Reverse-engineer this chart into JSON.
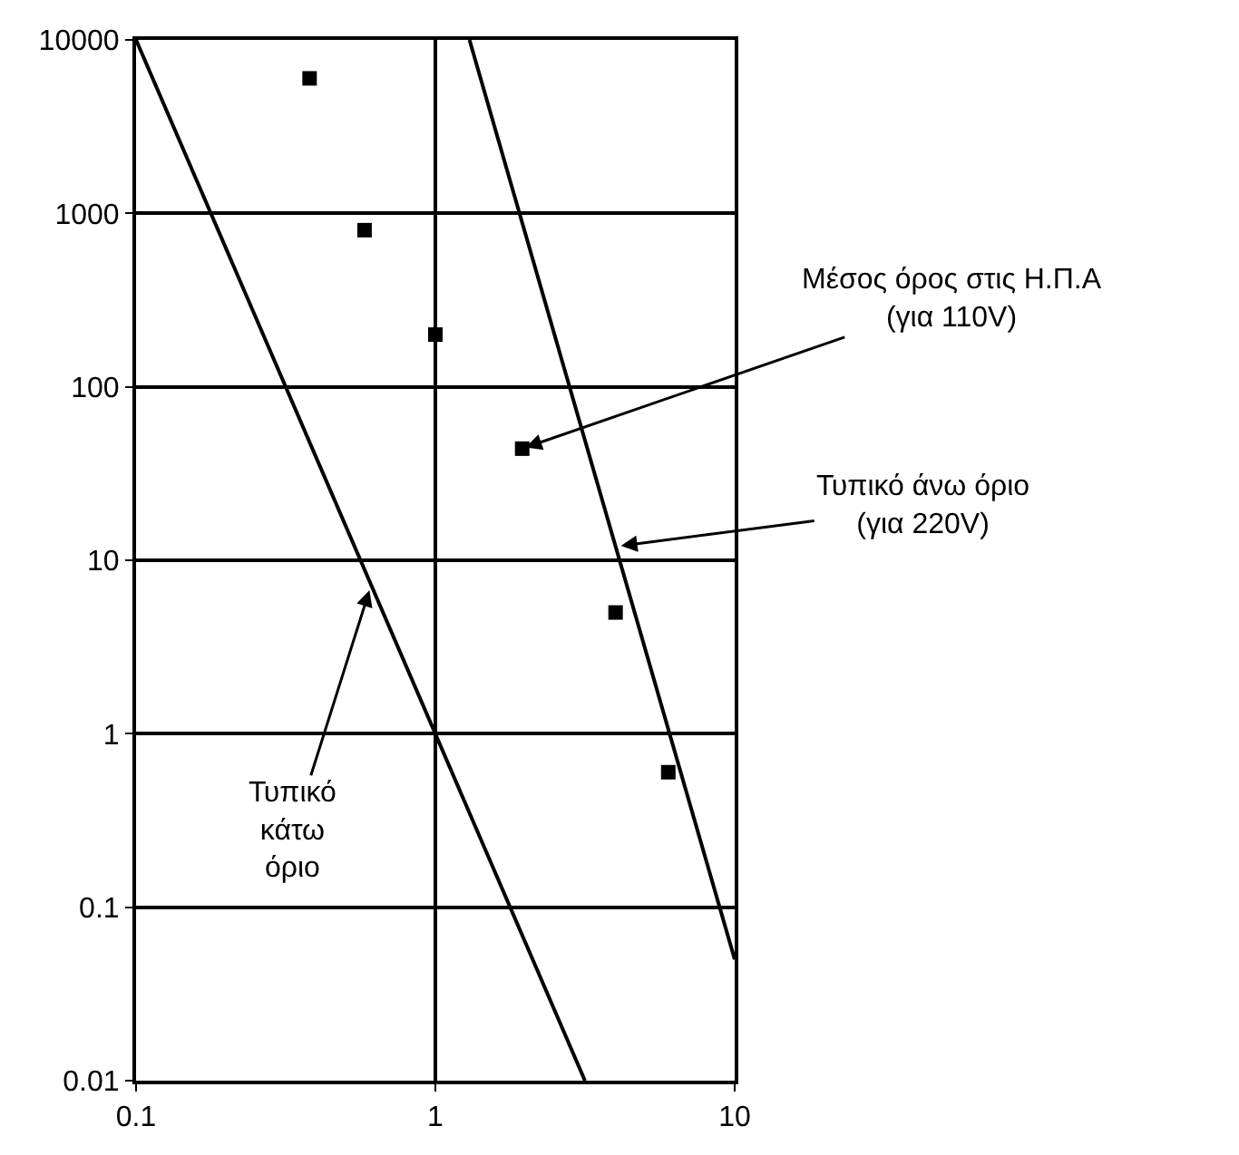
{
  "chart_data": {
    "type": "scatter",
    "log": "xy",
    "grid": true,
    "xlim": [
      0.1,
      10
    ],
    "xticks": [
      0.1,
      1,
      10
    ],
    "ylim": [
      0.01,
      10000
    ],
    "yticks": [
      0.01,
      0.1,
      1,
      10,
      100,
      1000,
      10000
    ],
    "x": [
      0.38,
      0.58,
      1.0,
      1.95,
      4.0,
      6.0
    ],
    "series": [
      {
        "marker": "square",
        "color": "#000000",
        "values": [
          6000,
          800,
          200,
          44,
          5,
          0.6
        ]
      },
      {
        "type": "line",
        "color": "#000000",
        "x": [
          0.1,
          3.16
        ],
        "values": [
          10000,
          0.01
        ]
      },
      {
        "type": "line",
        "color": "#000000",
        "x": [
          1.3,
          10
        ],
        "values": [
          10000,
          0.05
        ]
      }
    ],
    "annotations": [
      {
        "text": "Μέσος όρος στις Η.Π.Α\n(για 110V)",
        "x": 1.95,
        "y": 44
      },
      {
        "text": "Τυπικό άνω όριο\n(για 220V)",
        "x": 4.0,
        "y": 12
      },
      {
        "text": "Τυπικό\nκάτω\nόριο",
        "x": 0.61,
        "y": 7.2
      }
    ]
  }
}
